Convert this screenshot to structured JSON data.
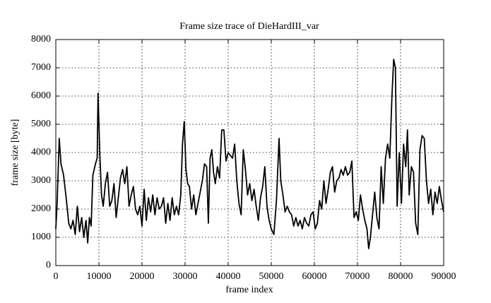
{
  "chart_data": {
    "type": "line",
    "title": "Frame size trace of DieHardIII_var",
    "x_label": "frame index",
    "y_label": "frame size [byte]",
    "xlim": [
      0,
      90000
    ],
    "xticks": [
      0,
      10000,
      20000,
      30000,
      40000,
      50000,
      60000,
      70000,
      80000,
      90000
    ],
    "ylim": [
      0,
      8000
    ],
    "yticks": [
      0,
      1000,
      2000,
      3000,
      4000,
      5000,
      6000,
      7000,
      8000
    ],
    "grid": true,
    "x": [
      0,
      300,
      800,
      1200,
      1800,
      2400,
      3000,
      3500,
      4000,
      4500,
      5000,
      5500,
      6000,
      6500,
      7000,
      7400,
      7800,
      8200,
      8600,
      9200,
      9600,
      9800,
      10200,
      10600,
      11000,
      11500,
      12000,
      12500,
      13000,
      13500,
      14000,
      14500,
      15000,
      15500,
      16000,
      16500,
      17000,
      17500,
      18000,
      18500,
      19000,
      19500,
      20000,
      20500,
      21000,
      21500,
      22000,
      22500,
      23000,
      23500,
      24000,
      24500,
      25000,
      25500,
      26000,
      26500,
      27000,
      27500,
      28000,
      28500,
      29000,
      29400,
      29800,
      30200,
      30600,
      31000,
      31500,
      32000,
      32500,
      33000,
      33500,
      34000,
      34500,
      35000,
      35400,
      35800,
      36200,
      36600,
      37000,
      37500,
      38000,
      38500,
      39000,
      39500,
      40000,
      40500,
      41000,
      41500,
      42000,
      42500,
      43000,
      43500,
      44000,
      44500,
      45000,
      45500,
      46000,
      46500,
      47000,
      47500,
      48000,
      48500,
      49000,
      49500,
      50000,
      50600,
      51200,
      51800,
      52200,
      52700,
      53200,
      53700,
      54200,
      54700,
      55200,
      55700,
      56200,
      56700,
      57200,
      57700,
      58200,
      58700,
      59200,
      59700,
      60200,
      60700,
      61200,
      61700,
      62200,
      62700,
      63200,
      63700,
      64200,
      64700,
      65200,
      65700,
      66200,
      66700,
      67200,
      67700,
      68200,
      68700,
      69200,
      69700,
      70200,
      70700,
      71200,
      71700,
      72200,
      72600,
      73000,
      73500,
      74000,
      74500,
      75000,
      75500,
      76000,
      76500,
      77000,
      77500,
      78000,
      78400,
      78800,
      79200,
      79700,
      80200,
      80700,
      81200,
      81600,
      82000,
      82500,
      83000,
      83500,
      84000,
      84500,
      85000,
      85500,
      86000,
      86500,
      87000,
      87500,
      88000,
      88500,
      89000,
      89500,
      90000
    ],
    "series": [
      {
        "color": "#000000",
        "values": [
          1300,
          2200,
          4500,
          3600,
          3200,
          2400,
          1500,
          1300,
          1600,
          1100,
          2100,
          1200,
          1700,
          1000,
          1600,
          800,
          1700,
          1400,
          3200,
          3600,
          3800,
          6100,
          4000,
          2500,
          2100,
          2900,
          3300,
          2100,
          2300,
          2900,
          1700,
          2400,
          3100,
          3400,
          2900,
          3500,
          2100,
          2500,
          2800,
          2000,
          1800,
          2100,
          1400,
          2700,
          1600,
          2400,
          1900,
          2500,
          1800,
          2400,
          2000,
          2100,
          2400,
          1500,
          2200,
          1600,
          2400,
          1800,
          2100,
          1800,
          2500,
          4300,
          5100,
          3400,
          2900,
          2800,
          2000,
          2500,
          1800,
          2200,
          2600,
          3000,
          3600,
          3500,
          1500,
          3800,
          4100,
          3300,
          2900,
          3500,
          3100,
          4800,
          4800,
          3700,
          4000,
          3900,
          3800,
          4300,
          3000,
          2200,
          1800,
          4100,
          3400,
          2500,
          2900,
          2300,
          2700,
          2100,
          1600,
          2400,
          2800,
          3500,
          2100,
          1600,
          1300,
          1100,
          2300,
          4500,
          3000,
          2500,
          1900,
          2100,
          1900,
          1800,
          1400,
          1700,
          1400,
          1600,
          1300,
          1700,
          1500,
          1400,
          1800,
          1900,
          1300,
          1500,
          2300,
          2000,
          3000,
          2200,
          2700,
          3300,
          3500,
          2600,
          3000,
          3100,
          3400,
          3200,
          3500,
          3200,
          3300,
          3700,
          1700,
          1900,
          1600,
          2500,
          2000,
          1600,
          1300,
          600,
          1000,
          1800,
          2600,
          1700,
          1300,
          3500,
          2200,
          3800,
          4300,
          3800,
          6000,
          7300,
          7000,
          2100,
          4000,
          2200,
          4300,
          3500,
          4800,
          2500,
          3500,
          3300,
          1500,
          1100,
          4100,
          4600,
          4500,
          3000,
          2200,
          2700,
          1800,
          2600,
          2200,
          2800,
          2300,
          1900
        ]
      }
    ]
  }
}
